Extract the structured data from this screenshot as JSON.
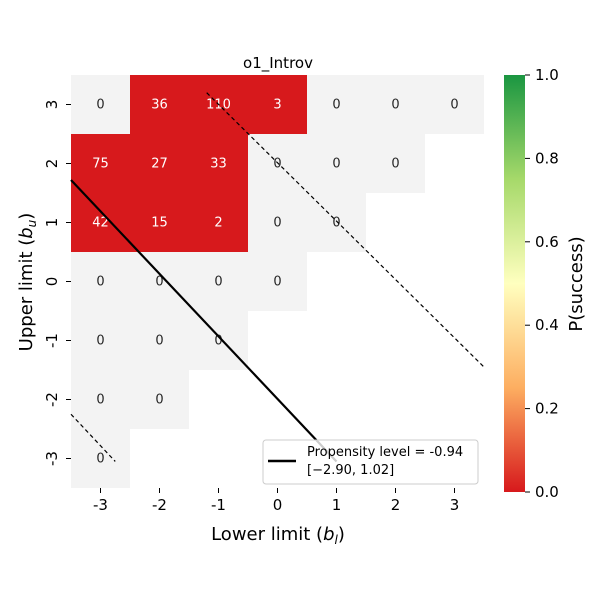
{
  "chart_data": {
    "type": "heatmap",
    "title": "o1_Introv",
    "xlabel_main": "Lower limit (",
    "xlabel_sym": "b",
    "xlabel_sub": "l",
    "xlabel_end": ")",
    "ylabel_main": "Upper limit (",
    "ylabel_sym": "b",
    "ylabel_sub": "u",
    "ylabel_end": ")",
    "x_values": [
      -3,
      -2,
      -1,
      0,
      1,
      2,
      3
    ],
    "y_values": [
      3,
      2,
      1,
      0,
      -1,
      -2,
      -3
    ],
    "x_tick_labels": [
      "-3",
      "-2",
      "-1",
      "0",
      "1",
      "2",
      "3"
    ],
    "y_tick_labels": [
      "3",
      "2",
      "1",
      "0",
      "-1",
      "-2",
      "-3"
    ],
    "cells": [
      {
        "bl": -3,
        "bu": 3,
        "count": "0",
        "p": null
      },
      {
        "bl": -2,
        "bu": 3,
        "count": "36",
        "p": 0.0
      },
      {
        "bl": -1,
        "bu": 3,
        "count": "110",
        "p": 0.0
      },
      {
        "bl": 0,
        "bu": 3,
        "count": "3",
        "p": 0.0
      },
      {
        "bl": 1,
        "bu": 3,
        "count": "0",
        "p": null
      },
      {
        "bl": 2,
        "bu": 3,
        "count": "0",
        "p": null
      },
      {
        "bl": 3,
        "bu": 3,
        "count": "0",
        "p": null
      },
      {
        "bl": -3,
        "bu": 2,
        "count": "75",
        "p": 0.0
      },
      {
        "bl": -2,
        "bu": 2,
        "count": "27",
        "p": 0.0
      },
      {
        "bl": -1,
        "bu": 2,
        "count": "33",
        "p": 0.0
      },
      {
        "bl": 0,
        "bu": 2,
        "count": "0",
        "p": null
      },
      {
        "bl": 1,
        "bu": 2,
        "count": "0",
        "p": null
      },
      {
        "bl": 2,
        "bu": 2,
        "count": "0",
        "p": null
      },
      {
        "bl": -3,
        "bu": 1,
        "count": "42",
        "p": 0.0
      },
      {
        "bl": -2,
        "bu": 1,
        "count": "15",
        "p": 0.0
      },
      {
        "bl": -1,
        "bu": 1,
        "count": "2",
        "p": 0.0
      },
      {
        "bl": 0,
        "bu": 1,
        "count": "0",
        "p": null
      },
      {
        "bl": 1,
        "bu": 1,
        "count": "0",
        "p": null
      },
      {
        "bl": -3,
        "bu": 0,
        "count": "0",
        "p": null
      },
      {
        "bl": -2,
        "bu": 0,
        "count": "0",
        "p": null
      },
      {
        "bl": -1,
        "bu": 0,
        "count": "0",
        "p": null
      },
      {
        "bl": 0,
        "bu": 0,
        "count": "0",
        "p": null
      },
      {
        "bl": -3,
        "bu": -1,
        "count": "0",
        "p": null
      },
      {
        "bl": -2,
        "bu": -1,
        "count": "0",
        "p": null
      },
      {
        "bl": -1,
        "bu": -1,
        "count": "0",
        "p": null
      },
      {
        "bl": -3,
        "bu": -2,
        "count": "0",
        "p": null
      },
      {
        "bl": -2,
        "bu": -2,
        "count": "0",
        "p": null
      },
      {
        "bl": -3,
        "bu": -3,
        "count": "0",
        "p": null
      }
    ],
    "colorbar": {
      "label": "P(success)",
      "range": [
        0.0,
        1.0
      ],
      "ticks": [
        "0.0",
        "0.2",
        "0.4",
        "0.6",
        "0.8",
        "1.0"
      ],
      "tick_values": [
        0.0,
        0.2,
        0.4,
        0.6,
        0.8,
        1.0
      ],
      "stops": [
        "#d7191c",
        "#fdae61",
        "#ffffbf",
        "#a6d96a",
        "#1a9641"
      ]
    },
    "empty_color": "#f3f3f3",
    "lines": [
      {
        "name": "propensity-line",
        "style": "solid",
        "from": [
          -3.5,
          1.72
        ],
        "to": [
          1.0,
          -3.05
        ]
      },
      {
        "name": "upper-bound-line",
        "style": "dashed",
        "from": [
          -1.2,
          3.2
        ],
        "to": [
          3.5,
          -1.45
        ]
      },
      {
        "name": "lower-bound-line",
        "style": "dashed",
        "from": [
          -3.5,
          -2.25
        ],
        "to": [
          -2.75,
          -3.05
        ]
      }
    ],
    "legend": {
      "position": "lower-right",
      "line1": "Propensity level = -0.94",
      "line2": "[−2.90, 1.02]"
    }
  }
}
